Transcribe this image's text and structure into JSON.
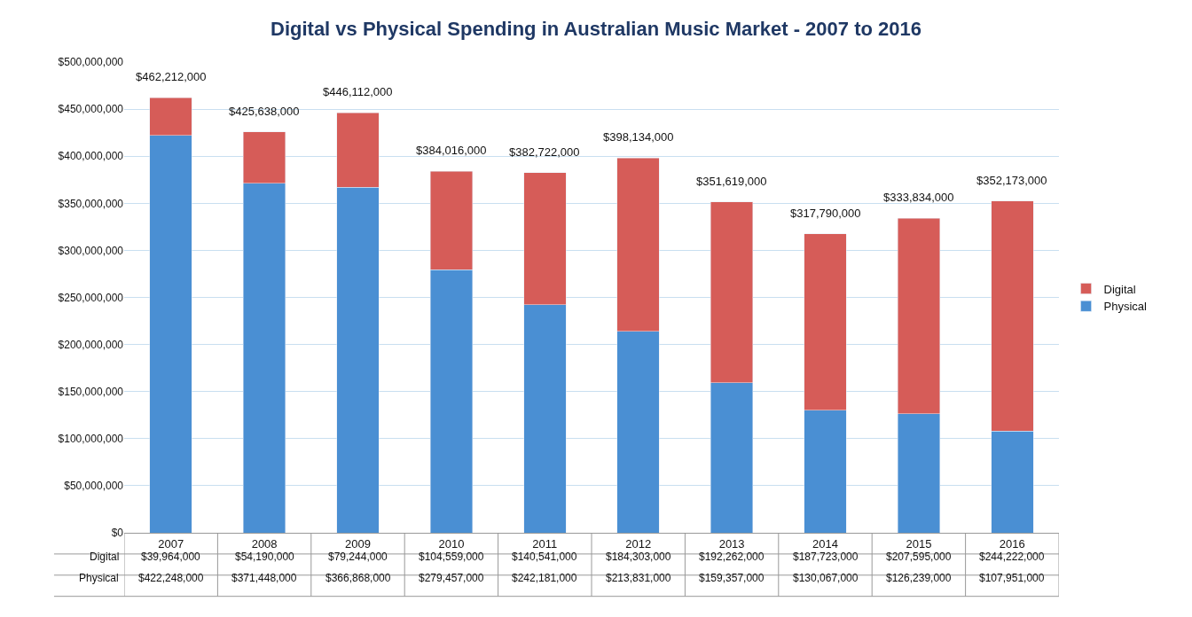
{
  "chart_data": {
    "type": "bar",
    "title": "Digital vs Physical Spending in Australian Music Market - 2007 to 2016",
    "categories": [
      "2007",
      "2008",
      "2009",
      "2010",
      "2011",
      "2012",
      "2013",
      "2014",
      "2015",
      "2016"
    ],
    "stacked": true,
    "series": [
      {
        "name": "Physical",
        "color": "#4a8fd3",
        "values": [
          422248000,
          371448000,
          366868000,
          279457000,
          242181000,
          213831000,
          159357000,
          130067000,
          126239000,
          107951000
        ],
        "value_labels": [
          "$422,248,000",
          "$371,448,000",
          "$366,868,000",
          "$279,457,000",
          "$242,181,000",
          "$213,831,000",
          "$159,357,000",
          "$130,067,000",
          "$126,239,000",
          "$107,951,000"
        ]
      },
      {
        "name": "Digital",
        "color": "#d65c58",
        "values": [
          39964000,
          54190000,
          79244000,
          104559000,
          140541000,
          184303000,
          192262000,
          187723000,
          207595000,
          244222000
        ],
        "value_labels": [
          "$39,964,000",
          "$54,190,000",
          "$79,244,000",
          "$104,559,000",
          "$140,541,000",
          "$184,303,000",
          "$192,262,000",
          "$187,723,000",
          "$207,595,000",
          "$244,222,000"
        ]
      }
    ],
    "totals": [
      "$462,212,000",
      "$425,638,000",
      "$446,112,000",
      "$384,016,000",
      "$382,722,000",
      "$398,134,000",
      "$351,619,000",
      "$317,790,000",
      "$333,834,000",
      "$352,173,000"
    ],
    "ylim": [
      0,
      500000000
    ],
    "yticks": [
      {
        "value": 0,
        "label": "$0"
      },
      {
        "value": 50000000,
        "label": "$50,000,000"
      },
      {
        "value": 100000000,
        "label": "$100,000,000"
      },
      {
        "value": 150000000,
        "label": "$150,000,000"
      },
      {
        "value": 200000000,
        "label": "$200,000,000"
      },
      {
        "value": 250000000,
        "label": "$250,000,000"
      },
      {
        "value": 300000000,
        "label": "$300,000,000"
      },
      {
        "value": 350000000,
        "label": "$350,000,000"
      },
      {
        "value": 400000000,
        "label": "$400,000,000"
      },
      {
        "value": 450000000,
        "label": "$450,000,000"
      },
      {
        "value": 500000000,
        "label": "$500,000,000"
      }
    ],
    "grid": "y",
    "legend": "right"
  }
}
